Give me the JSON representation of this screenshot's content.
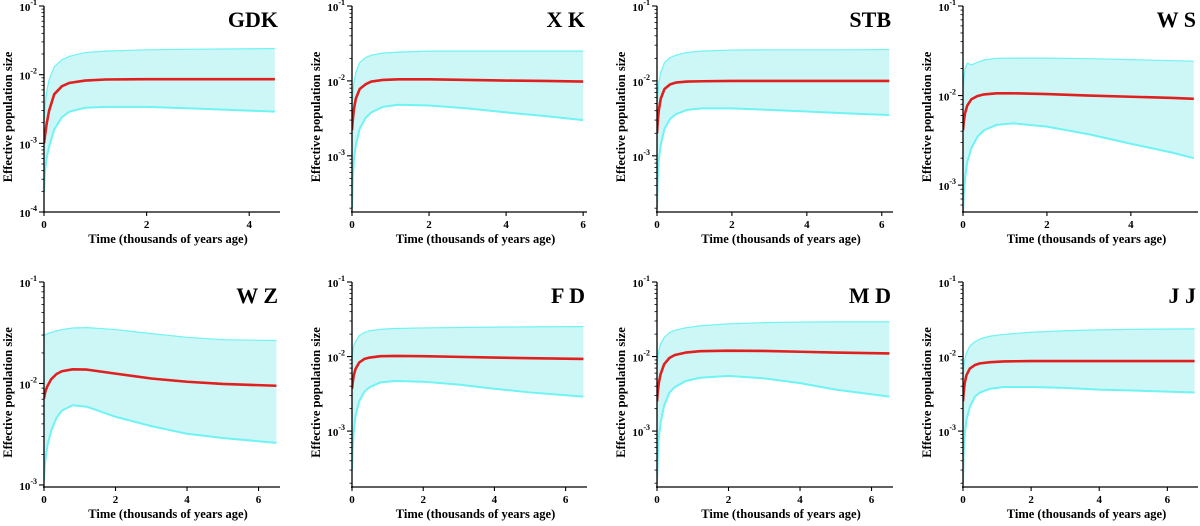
{
  "colors": {
    "median": "#e0201e",
    "band": "#cdf7f7",
    "band_edge": "#6ff3f3"
  },
  "chart_data": [
    {
      "type": "area",
      "title": "GDK",
      "xlabel": "Time (thousands of years age)",
      "ylabel": "Effective population size",
      "xlim": [
        0,
        4.6
      ],
      "ylim_exp": [
        -4,
        -1
      ],
      "xticks": [
        0,
        2,
        4
      ],
      "yticks": [
        {
          "base": "10",
          "exp": "-1"
        },
        {
          "base": "10",
          "exp": "-2"
        },
        {
          "base": "10",
          "exp": "-3"
        },
        {
          "base": "10",
          "exp": "-4"
        }
      ],
      "x": [
        0,
        0.02,
        0.05,
        0.1,
        0.2,
        0.35,
        0.5,
        0.8,
        1.2,
        2,
        3,
        4.5
      ],
      "median": [
        0.001,
        0.0013,
        0.0019,
        0.003,
        0.0052,
        0.0068,
        0.0076,
        0.0082,
        0.0085,
        0.0086,
        0.0086,
        0.0086
      ],
      "upper": [
        0.002,
        0.0035,
        0.0055,
        0.0085,
        0.013,
        0.0165,
        0.0185,
        0.021,
        0.022,
        0.023,
        0.0235,
        0.024
      ],
      "lower": [
        0.0002,
        0.0004,
        0.0006,
        0.0009,
        0.0016,
        0.0024,
        0.0029,
        0.0033,
        0.0034,
        0.0034,
        0.0032,
        0.0029
      ]
    },
    {
      "type": "area",
      "title": "X K",
      "xlabel": "Time (thousands of years age)",
      "ylabel": "Effective population size",
      "xlim": [
        0,
        6.1
      ],
      "ylim_exp": [
        -3.75,
        -1
      ],
      "xticks": [
        0,
        2,
        4,
        6
      ],
      "yticks": [
        {
          "base": "10",
          "exp": "-1"
        },
        {
          "base": "10",
          "exp": "-2"
        },
        {
          "base": "10",
          "exp": "-3"
        }
      ],
      "x": [
        0,
        0.02,
        0.05,
        0.1,
        0.2,
        0.35,
        0.5,
        0.8,
        1.2,
        2,
        3,
        4,
        5,
        6
      ],
      "median": [
        0.0022,
        0.003,
        0.0042,
        0.0058,
        0.0078,
        0.009,
        0.0098,
        0.0103,
        0.0105,
        0.0105,
        0.0103,
        0.0101,
        0.01,
        0.0098
      ],
      "upper": [
        0.004,
        0.0065,
        0.0095,
        0.013,
        0.0175,
        0.0205,
        0.022,
        0.0235,
        0.0242,
        0.025,
        0.025,
        0.025,
        0.025,
        0.025
      ],
      "lower": [
        0.0002,
        0.0005,
        0.0009,
        0.0014,
        0.0023,
        0.0032,
        0.0038,
        0.0045,
        0.0048,
        0.0047,
        0.0043,
        0.0038,
        0.0034,
        0.003
      ]
    },
    {
      "type": "area",
      "title": "STB",
      "xlabel": "Time (thousands of years age)",
      "ylabel": "Effective population size",
      "xlim": [
        0,
        6.3
      ],
      "ylim_exp": [
        -3.75,
        -1
      ],
      "xticks": [
        0,
        2,
        4,
        6
      ],
      "yticks": [
        {
          "base": "10",
          "exp": "-1"
        },
        {
          "base": "10",
          "exp": "-2"
        },
        {
          "base": "10",
          "exp": "-3"
        }
      ],
      "x": [
        0,
        0.02,
        0.05,
        0.1,
        0.2,
        0.35,
        0.5,
        0.8,
        1.2,
        2,
        3,
        4,
        5,
        6.2
      ],
      "median": [
        0.002,
        0.0029,
        0.0041,
        0.0058,
        0.0078,
        0.009,
        0.0095,
        0.0098,
        0.0099,
        0.01,
        0.01,
        0.01,
        0.01,
        0.01
      ],
      "upper": [
        0.004,
        0.0065,
        0.0095,
        0.013,
        0.0175,
        0.0205,
        0.022,
        0.024,
        0.025,
        0.0258,
        0.026,
        0.026,
        0.026,
        0.0262
      ],
      "lower": [
        0.0002,
        0.0005,
        0.0009,
        0.0014,
        0.0023,
        0.0031,
        0.0036,
        0.0041,
        0.0043,
        0.0043,
        0.0041,
        0.0039,
        0.0037,
        0.0035
      ]
    },
    {
      "type": "area",
      "title": "W S",
      "xlabel": "Time (thousands of years age)",
      "ylabel": "Effective population size",
      "xlim": [
        0,
        5.6
      ],
      "ylim_exp": [
        -3.3,
        -1
      ],
      "xticks": [
        0,
        2,
        4
      ],
      "yticks": [
        {
          "base": "10",
          "exp": "-1"
        },
        {
          "base": "10",
          "exp": "-2"
        },
        {
          "base": "10",
          "exp": "-3"
        }
      ],
      "x": [
        0,
        0.02,
        0.05,
        0.1,
        0.2,
        0.35,
        0.5,
        0.8,
        1.2,
        2,
        3,
        4,
        5,
        5.5
      ],
      "median": [
        0.0041,
        0.0052,
        0.0064,
        0.0077,
        0.0091,
        0.0099,
        0.0103,
        0.0106,
        0.0106,
        0.0104,
        0.01,
        0.0097,
        0.0094,
        0.0092
      ],
      "upper": [
        0.01,
        0.015,
        0.02,
        0.023,
        0.022,
        0.0235,
        0.025,
        0.026,
        0.0262,
        0.0262,
        0.0258,
        0.0252,
        0.0245,
        0.0242
      ],
      "lower": [
        0.0005,
        0.0008,
        0.0012,
        0.0018,
        0.0026,
        0.0035,
        0.0041,
        0.0047,
        0.0049,
        0.0045,
        0.0037,
        0.0029,
        0.0023,
        0.002
      ]
    },
    {
      "type": "area",
      "title": "W Z",
      "xlabel": "Time (thousands of years age)",
      "ylabel": "Effective population size",
      "xlim": [
        0,
        6.6
      ],
      "ylim_exp": [
        -3.02,
        -1
      ],
      "xticks": [
        0,
        2,
        4,
        6
      ],
      "yticks": [
        {
          "base": "10",
          "exp": "-1"
        },
        {
          "base": "10",
          "exp": "-2"
        },
        {
          "base": "10",
          "exp": "-3"
        }
      ],
      "x": [
        0,
        0.02,
        0.05,
        0.1,
        0.2,
        0.35,
        0.5,
        0.8,
        1.2,
        2,
        3,
        4,
        5,
        6.5
      ],
      "median": [
        0.0071,
        0.0078,
        0.0086,
        0.0095,
        0.011,
        0.0124,
        0.0132,
        0.0138,
        0.0137,
        0.0125,
        0.0112,
        0.0104,
        0.0099,
        0.0095
      ],
      "upper": [
        0.028,
        0.03,
        0.0305,
        0.031,
        0.0318,
        0.033,
        0.034,
        0.0352,
        0.0355,
        0.034,
        0.031,
        0.0285,
        0.027,
        0.0265
      ],
      "lower": [
        0.0011,
        0.0015,
        0.0019,
        0.0025,
        0.0034,
        0.0046,
        0.0054,
        0.0061,
        0.0059,
        0.0047,
        0.0038,
        0.0032,
        0.0029,
        0.0026
      ]
    },
    {
      "type": "area",
      "title": "F D",
      "xlabel": "Time (thousands of years age)",
      "ylabel": "Effective population size",
      "xlim": [
        0,
        6.6
      ],
      "ylim_exp": [
        -3.75,
        -1
      ],
      "xticks": [
        0,
        2,
        4,
        6
      ],
      "yticks": [
        {
          "base": "10",
          "exp": "-1"
        },
        {
          "base": "10",
          "exp": "-2"
        },
        {
          "base": "10",
          "exp": "-3"
        }
      ],
      "x": [
        0,
        0.02,
        0.05,
        0.1,
        0.2,
        0.35,
        0.5,
        0.8,
        1.2,
        2,
        3,
        4,
        5,
        6.5
      ],
      "median": [
        0.0037,
        0.0045,
        0.0056,
        0.0068,
        0.0083,
        0.0093,
        0.0097,
        0.0101,
        0.0102,
        0.0101,
        0.0099,
        0.0097,
        0.0095,
        0.0093
      ],
      "upper": [
        0.009,
        0.012,
        0.014,
        0.016,
        0.019,
        0.021,
        0.0222,
        0.0232,
        0.0238,
        0.0242,
        0.0245,
        0.0248,
        0.025,
        0.0252
      ],
      "lower": [
        0.0003,
        0.0006,
        0.001,
        0.0016,
        0.0025,
        0.0034,
        0.0039,
        0.0045,
        0.0047,
        0.0046,
        0.0042,
        0.0037,
        0.0033,
        0.0029
      ]
    },
    {
      "type": "area",
      "title": "M D",
      "xlabel": "Time (thousands of years age)",
      "ylabel": "Effective population size",
      "xlim": [
        0,
        6.6
      ],
      "ylim_exp": [
        -3.75,
        -1
      ],
      "xticks": [
        0,
        2,
        4,
        6
      ],
      "yticks": [
        {
          "base": "10",
          "exp": "-1"
        },
        {
          "base": "10",
          "exp": "-2"
        },
        {
          "base": "10",
          "exp": "-3"
        }
      ],
      "x": [
        0,
        0.02,
        0.05,
        0.1,
        0.2,
        0.35,
        0.5,
        0.8,
        1.2,
        2,
        3,
        4,
        5,
        6.5
      ],
      "median": [
        0.0025,
        0.0033,
        0.0044,
        0.0058,
        0.0079,
        0.0096,
        0.0105,
        0.0113,
        0.0118,
        0.012,
        0.0119,
        0.0116,
        0.0113,
        0.011
      ],
      "upper": [
        0.007,
        0.0095,
        0.012,
        0.0148,
        0.018,
        0.021,
        0.0225,
        0.0243,
        0.0258,
        0.0275,
        0.0285,
        0.029,
        0.0292,
        0.0292
      ],
      "lower": [
        0.0002,
        0.0004,
        0.0008,
        0.0013,
        0.0022,
        0.0033,
        0.0039,
        0.0047,
        0.0052,
        0.0055,
        0.0051,
        0.0044,
        0.0036,
        0.0029
      ]
    },
    {
      "type": "area",
      "title": "J J",
      "xlabel": "Time (thousands of years age)",
      "ylabel": "Effective population size",
      "xlim": [
        0,
        6.9
      ],
      "ylim_exp": [
        -3.75,
        -1
      ],
      "xticks": [
        0,
        2,
        4,
        6
      ],
      "yticks": [
        {
          "base": "10",
          "exp": "-1"
        },
        {
          "base": "10",
          "exp": "-2"
        },
        {
          "base": "10",
          "exp": "-3"
        }
      ],
      "x": [
        0,
        0.02,
        0.05,
        0.1,
        0.2,
        0.35,
        0.5,
        0.8,
        1.2,
        2,
        3,
        4,
        5,
        6.8
      ],
      "median": [
        0.0025,
        0.0033,
        0.0044,
        0.0056,
        0.0069,
        0.0077,
        0.0081,
        0.0084,
        0.0086,
        0.0087,
        0.0087,
        0.0087,
        0.0087,
        0.0087
      ],
      "upper": [
        0.005,
        0.007,
        0.009,
        0.0112,
        0.0138,
        0.0158,
        0.0172,
        0.0188,
        0.0198,
        0.0212,
        0.0222,
        0.0228,
        0.0232,
        0.0235
      ],
      "lower": [
        0.0002,
        0.0005,
        0.0009,
        0.0014,
        0.0021,
        0.0029,
        0.0033,
        0.0037,
        0.0039,
        0.0039,
        0.0038,
        0.0036,
        0.0035,
        0.0033
      ]
    }
  ]
}
